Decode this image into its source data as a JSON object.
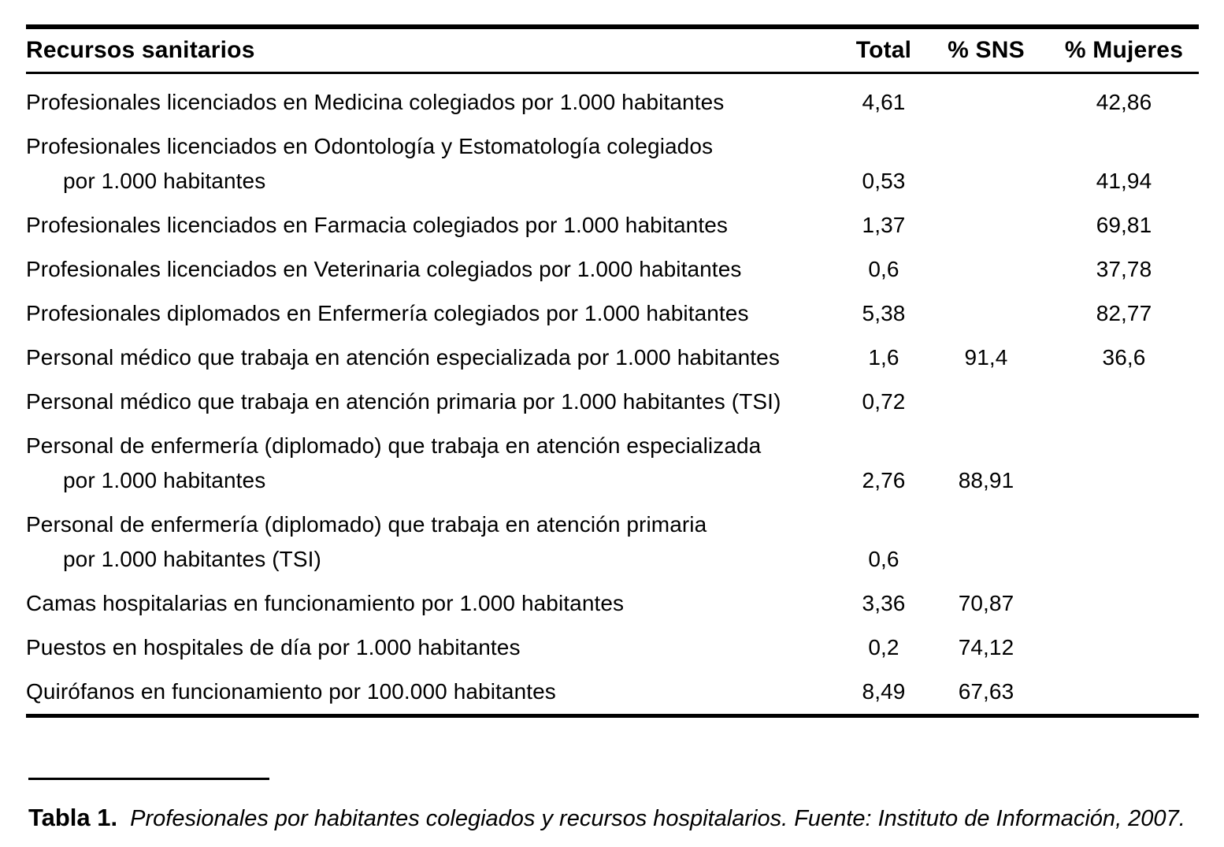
{
  "table": {
    "header": {
      "resource": "Recursos sanitarios",
      "total": "Total",
      "sns": "% SNS",
      "mujeres": "% Mujeres"
    },
    "rows": [
      {
        "label": "Profesionales licenciados en Medicina colegiados por 1.000 habitantes",
        "label2": "",
        "total": "4,61",
        "sns": "",
        "mujeres": "42,86"
      },
      {
        "label": "Profesionales licenciados en Odontología y Estomatología colegiados",
        "label2": "por 1.000 habitantes",
        "total": "0,53",
        "sns": "",
        "mujeres": "41,94"
      },
      {
        "label": "Profesionales licenciados en Farmacia colegiados por 1.000 habitantes",
        "label2": "",
        "total": "1,37",
        "sns": "",
        "mujeres": "69,81"
      },
      {
        "label": "Profesionales licenciados en Veterinaria colegiados por 1.000 habitantes",
        "label2": "",
        "total": "0,6",
        "sns": "",
        "mujeres": "37,78"
      },
      {
        "label": "Profesionales diplomados en Enfermería colegiados por 1.000 habitantes",
        "label2": "",
        "total": "5,38",
        "sns": "",
        "mujeres": "82,77"
      },
      {
        "label": "Personal médico que trabaja en atención especializada por 1.000 habitantes",
        "label2": "",
        "total": "1,6",
        "sns": "91,4",
        "mujeres": "36,6"
      },
      {
        "label": "Personal médico que trabaja en atención primaria por 1.000 habitantes (TSI)",
        "label2": "",
        "total": "0,72",
        "sns": "",
        "mujeres": ""
      },
      {
        "label": "Personal de enfermería (diplomado) que trabaja en atención especializada",
        "label2": "por 1.000 habitantes",
        "total": "2,76",
        "sns": "88,91",
        "mujeres": ""
      },
      {
        "label": "Personal de enfermería (diplomado) que trabaja en atención primaria",
        "label2": "por 1.000 habitantes (TSI)",
        "total": "0,6",
        "sns": "",
        "mujeres": ""
      },
      {
        "label": "Camas hospitalarias en funcionamiento por 1.000 habitantes",
        "label2": "",
        "total": "3,36",
        "sns": "70,87",
        "mujeres": ""
      },
      {
        "label": "Puestos en hospitales de día por 1.000 habitantes",
        "label2": "",
        "total": "0,2",
        "sns": "74,12",
        "mujeres": ""
      },
      {
        "label": "Quirófanos en funcionamiento por 100.000 habitantes",
        "label2": "",
        "total": "8,49",
        "sns": "67,63",
        "mujeres": ""
      }
    ]
  },
  "caption": {
    "label": "Tabla 1.",
    "text": "Profesionales por habitantes colegiados y recursos hospitalarios. Fuente: Instituto de Información, 2007."
  }
}
